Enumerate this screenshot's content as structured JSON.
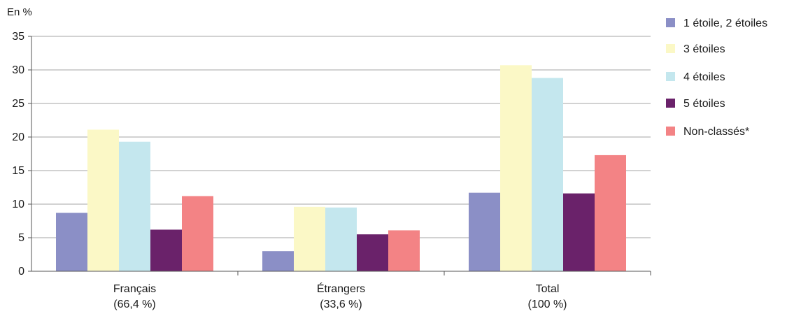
{
  "chart_data": {
    "type": "bar",
    "unit_label": "En %",
    "categories": [
      {
        "name": "Français",
        "share": "(66,4 %)"
      },
      {
        "name": "Étrangers",
        "share": "(33,6 %)"
      },
      {
        "name": "Total",
        "share": "(100 %)"
      }
    ],
    "series": [
      {
        "name": "1 étoile, 2 étoiles",
        "color": "#8b8fc6",
        "values": [
          8.7,
          3.0,
          11.7
        ]
      },
      {
        "name": "3 étoiles",
        "color": "#fbf8c6",
        "values": [
          21.1,
          9.6,
          30.7
        ]
      },
      {
        "name": "4 étoiles",
        "color": "#c4e7ee",
        "values": [
          19.3,
          9.5,
          28.8
        ]
      },
      {
        "name": "5 étoiles",
        "color": "#6a226a",
        "values": [
          6.2,
          5.5,
          11.6
        ]
      },
      {
        "name": "Non-classés*",
        "color": "#f38385",
        "values": [
          11.2,
          6.1,
          17.3
        ]
      }
    ],
    "ylim": [
      0,
      35
    ],
    "yticks": [
      0,
      5,
      10,
      15,
      20,
      25,
      30,
      35
    ],
    "grid": true,
    "legend_position": "right"
  }
}
